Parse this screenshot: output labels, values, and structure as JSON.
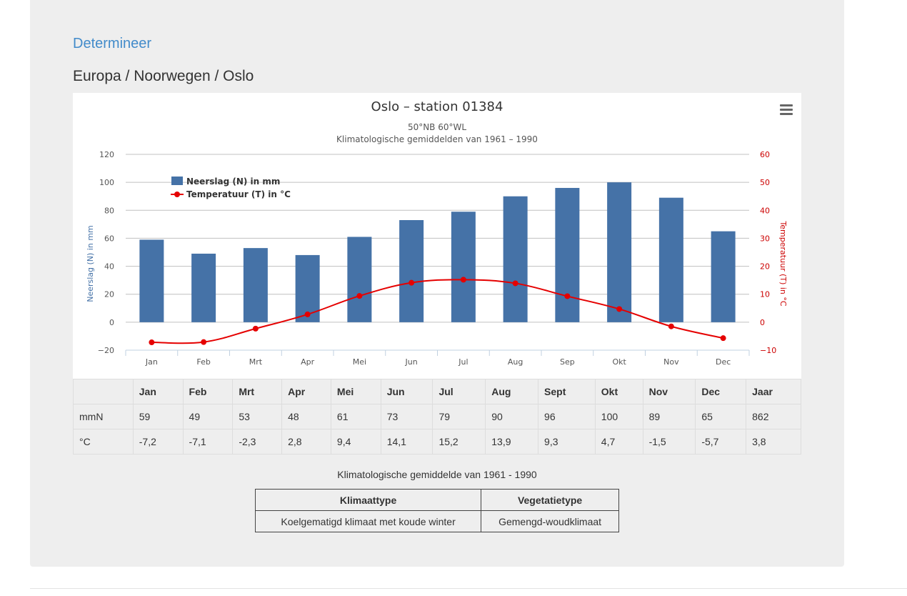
{
  "nav": {
    "determineer_label": "Determineer",
    "breadcrumb": "Europa / Noorwegen / Oslo"
  },
  "chart_data": {
    "type": "bar",
    "title": "Oslo – station 01384",
    "subtitle_1": "50°NB 60°WL",
    "subtitle_2": "Klimatologische gemiddelden van 1961 – 1990",
    "categories": [
      "Jan",
      "Feb",
      "Mrt",
      "Apr",
      "Mei",
      "Jun",
      "Jul",
      "Aug",
      "Sep",
      "Okt",
      "Nov",
      "Dec"
    ],
    "ylabel": "Neerslag (N) in mm",
    "ylabel_right": "Temperatuur (T) in °C",
    "ylim": [
      -20,
      120
    ],
    "ylim_right": [
      -10,
      60
    ],
    "yticks": [
      "120",
      "100",
      "80",
      "60",
      "40",
      "20",
      "0",
      "−20"
    ],
    "yticks_right": [
      "60",
      "50",
      "40",
      "30",
      "20",
      "10",
      "0",
      "−10"
    ],
    "grid": true,
    "legend_position": "top-left",
    "series": [
      {
        "name": "Neerslag (N) in mm",
        "type": "bar",
        "axis": "left",
        "values": [
          59,
          49,
          53,
          48,
          61,
          73,
          79,
          90,
          96,
          100,
          89,
          65
        ]
      },
      {
        "name": "Temperatuur (T) in °C",
        "type": "line",
        "axis": "right",
        "values": [
          -7.2,
          -7.1,
          -2.3,
          2.8,
          9.4,
          14.1,
          15.2,
          13.9,
          9.3,
          4.7,
          -1.5,
          -5.7
        ]
      }
    ],
    "colors": {
      "bar": "#4572a7",
      "line": "#e50000",
      "grid": "#c0c0c0",
      "left_axis": "#4572a7",
      "right_axis": "#cc0000"
    }
  },
  "table": {
    "headers": [
      "",
      "Jan",
      "Feb",
      "Mrt",
      "Apr",
      "Mei",
      "Jun",
      "Jul",
      "Aug",
      "Sept",
      "Okt",
      "Nov",
      "Dec",
      "Jaar"
    ],
    "rows": [
      [
        "mmN",
        "59",
        "49",
        "53",
        "48",
        "61",
        "73",
        "79",
        "90",
        "96",
        "100",
        "89",
        "65",
        "862"
      ],
      [
        "°C",
        "-7,2",
        "-7,1",
        "-2,3",
        "2,8",
        "9,4",
        "14,1",
        "15,2",
        "13,9",
        "9,3",
        "4,7",
        "-1,5",
        "-5,7",
        "3,8"
      ]
    ]
  },
  "caption": "Klimatologische gemiddelde van 1961 - 1990",
  "type_table": {
    "headers": [
      "Klimaattype",
      "Vegetatietype"
    ],
    "values": [
      "Koelgematigd klimaat met koude winter",
      "Gemengd-woudklimaat"
    ]
  },
  "icons": {
    "menu": "hamburger-menu-icon"
  }
}
